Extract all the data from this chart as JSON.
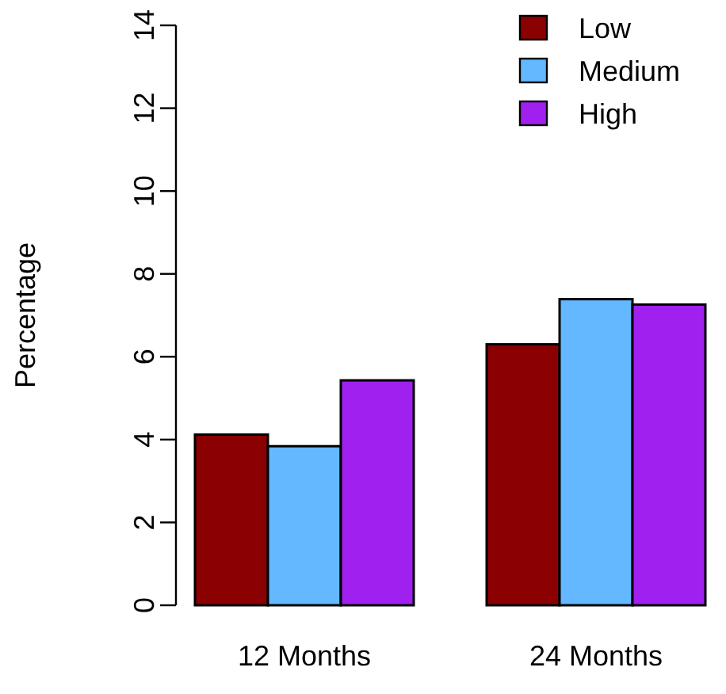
{
  "chart_data": {
    "type": "bar",
    "ylabel": "Percentage",
    "categories": [
      "12 Months",
      "24 Months"
    ],
    "series": [
      {
        "name": "Low",
        "color": "#8b0000",
        "values": [
          4.12,
          6.3
        ]
      },
      {
        "name": "Medium",
        "color": "#63b8ff",
        "values": [
          3.84,
          7.39
        ]
      },
      {
        "name": "High",
        "color": "#a020f0",
        "values": [
          5.43,
          7.26
        ]
      }
    ],
    "ylim": [
      0,
      14
    ],
    "yticks": [
      0,
      2,
      4,
      6,
      8,
      10,
      12,
      14
    ],
    "legend": "top right"
  }
}
